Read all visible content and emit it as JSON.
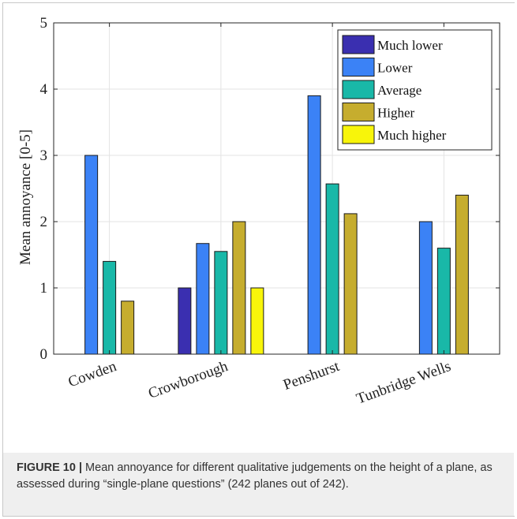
{
  "chart_data": {
    "type": "bar",
    "categories": [
      "Cowden",
      "Crowborough",
      "Penshurst",
      "Tunbridge Wells"
    ],
    "series": [
      {
        "name": "Much lower",
        "color": "#3a2fb0",
        "values": [
          null,
          1.0,
          null,
          null
        ]
      },
      {
        "name": "Lower",
        "color": "#3b82f6",
        "values": [
          3.0,
          1.67,
          3.9,
          2.0
        ]
      },
      {
        "name": "Average",
        "color": "#19b8a8",
        "values": [
          1.4,
          1.55,
          2.57,
          1.6
        ]
      },
      {
        "name": "Higher",
        "color": "#c6ad2e",
        "values": [
          0.8,
          2.0,
          2.12,
          2.4
        ]
      },
      {
        "name": "Much higher",
        "color": "#f8f50a",
        "values": [
          null,
          1.0,
          null,
          null
        ]
      }
    ],
    "ylabel": "Mean annoyance [0-5]",
    "xlabel": "",
    "ylim": [
      0,
      5
    ],
    "yticks": [
      "0",
      "1",
      "2",
      "3",
      "4",
      "5"
    ],
    "grid": true,
    "legend": "top-right"
  },
  "caption": {
    "label": "FIGURE 10 |",
    "text": " Mean annoyance for different qualitative judgements on the height of a plane, as assessed during “single-plane questions” (242 planes out of 242)."
  }
}
